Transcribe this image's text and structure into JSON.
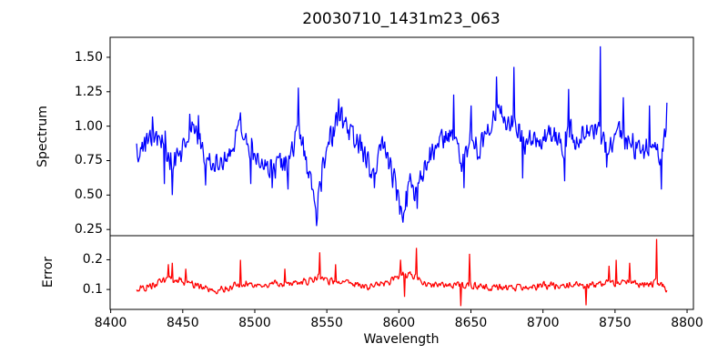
{
  "title": "20030710_1431m23_063",
  "xlabel": "Wavelength",
  "colors": {
    "spectrum": "#0000ff",
    "error": "#ff0000",
    "axes": "#000000",
    "background": "#ffffff"
  },
  "xticks": {
    "labels": [
      "8400",
      "8450",
      "8500",
      "8550",
      "8600",
      "8650",
      "8700",
      "8750",
      "8800"
    ],
    "values": [
      8400,
      8450,
      8500,
      8550,
      8600,
      8650,
      8700,
      8750,
      8800
    ]
  },
  "chart_data": [
    {
      "type": "line",
      "name": "spectrum",
      "ylabel": "Spectrum",
      "color": "#0000ff",
      "legend": "none",
      "grid": false,
      "xlim": [
        8399.6,
        8804.4
      ],
      "ylim": [
        0.205,
        1.645
      ],
      "ytick_labels": [
        "0.25",
        "0.50",
        "0.75",
        "1.00",
        "1.25",
        "1.50"
      ],
      "ytick_values": [
        0.25,
        0.5,
        0.75,
        1.0,
        1.25,
        1.5
      ],
      "x_data_range": [
        8418,
        8786
      ],
      "n_points": 670,
      "envelope": [
        [
          8418,
          0.82
        ],
        [
          8424,
          0.86
        ],
        [
          8428,
          0.92
        ],
        [
          8431,
          0.94
        ],
        [
          8434,
          0.89
        ],
        [
          8437,
          0.92
        ],
        [
          8440,
          0.78
        ],
        [
          8444,
          0.72
        ],
        [
          8448,
          0.76
        ],
        [
          8451,
          0.82
        ],
        [
          8454,
          0.94
        ],
        [
          8457,
          1.0
        ],
        [
          8460,
          0.97
        ],
        [
          8463,
          0.86
        ],
        [
          8466,
          0.74
        ],
        [
          8471,
          0.74
        ],
        [
          8476,
          0.71
        ],
        [
          8480,
          0.77
        ],
        [
          8484,
          0.86
        ],
        [
          8488,
          0.96
        ],
        [
          8491,
          1.0
        ],
        [
          8494,
          0.94
        ],
        [
          8497,
          0.84
        ],
        [
          8500,
          0.8
        ],
        [
          8504,
          0.76
        ],
        [
          8508,
          0.73
        ],
        [
          8512,
          0.71
        ],
        [
          8516,
          0.73
        ],
        [
          8520,
          0.71
        ],
        [
          8524,
          0.76
        ],
        [
          8528,
          0.92
        ],
        [
          8530,
          1.02
        ],
        [
          8533,
          0.86
        ],
        [
          8536,
          0.72
        ],
        [
          8539,
          0.57
        ],
        [
          8542,
          0.34
        ],
        [
          8545,
          0.52
        ],
        [
          8548,
          0.76
        ],
        [
          8551,
          0.9
        ],
        [
          8554,
          0.96
        ],
        [
          8558,
          1.06
        ],
        [
          8561,
          1.04
        ],
        [
          8564,
          0.96
        ],
        [
          8568,
          0.91
        ],
        [
          8572,
          0.89
        ],
        [
          8576,
          0.81
        ],
        [
          8580,
          0.67
        ],
        [
          8583,
          0.71
        ],
        [
          8586,
          0.8
        ],
        [
          8590,
          0.86
        ],
        [
          8593,
          0.76
        ],
        [
          8596,
          0.62
        ],
        [
          8600,
          0.46
        ],
        [
          8603,
          0.37
        ],
        [
          8606,
          0.5
        ],
        [
          8609,
          0.56
        ],
        [
          8613,
          0.48
        ],
        [
          8616,
          0.66
        ],
        [
          8620,
          0.76
        ],
        [
          8624,
          0.84
        ],
        [
          8628,
          0.88
        ],
        [
          8632,
          0.92
        ],
        [
          8636,
          0.95
        ],
        [
          8640,
          0.86
        ],
        [
          8643,
          0.72
        ],
        [
          8646,
          0.76
        ],
        [
          8650,
          0.94
        ],
        [
          8653,
          0.86
        ],
        [
          8656,
          0.82
        ],
        [
          8660,
          0.94
        ],
        [
          8664,
          1.04
        ],
        [
          8668,
          1.14
        ],
        [
          8672,
          1.1
        ],
        [
          8676,
          1.0
        ],
        [
          8680,
          1.04
        ],
        [
          8684,
          0.94
        ],
        [
          8688,
          0.86
        ],
        [
          8692,
          0.9
        ],
        [
          8696,
          0.9
        ],
        [
          8700,
          0.92
        ],
        [
          8705,
          0.94
        ],
        [
          8710,
          0.9
        ],
        [
          8714,
          0.82
        ],
        [
          8718,
          0.98
        ],
        [
          8722,
          0.9
        ],
        [
          8726,
          0.94
        ],
        [
          8730,
          1.0
        ],
        [
          8734,
          0.94
        ],
        [
          8738,
          1.02
        ],
        [
          8742,
          0.9
        ],
        [
          8746,
          0.86
        ],
        [
          8750,
          0.94
        ],
        [
          8754,
          0.98
        ],
        [
          8758,
          0.9
        ],
        [
          8762,
          0.86
        ],
        [
          8766,
          0.86
        ],
        [
          8770,
          0.81
        ],
        [
          8774,
          0.88
        ],
        [
          8778,
          0.86
        ],
        [
          8782,
          0.78
        ],
        [
          8786,
          1.0
        ]
      ],
      "spikes": [
        [
          8429,
          1.07
        ],
        [
          8437,
          0.58
        ],
        [
          8443,
          0.5
        ],
        [
          8455,
          1.09
        ],
        [
          8461,
          1.08
        ],
        [
          8466,
          0.57
        ],
        [
          8490,
          1.1
        ],
        [
          8497,
          0.58
        ],
        [
          8512,
          0.55
        ],
        [
          8523,
          0.54
        ],
        [
          8530,
          1.28
        ],
        [
          8543,
          0.275
        ],
        [
          8558,
          1.2
        ],
        [
          8583,
          0.55
        ],
        [
          8603,
          0.3
        ],
        [
          8613,
          0.4
        ],
        [
          8638,
          1.23
        ],
        [
          8645,
          0.55
        ],
        [
          8650,
          1.15
        ],
        [
          8668,
          1.36
        ],
        [
          8680,
          1.43
        ],
        [
          8686,
          0.62
        ],
        [
          8715,
          0.6
        ],
        [
          8718,
          1.27
        ],
        [
          8740,
          1.58
        ],
        [
          8744,
          0.7
        ],
        [
          8756,
          1.21
        ],
        [
          8774,
          1.15
        ],
        [
          8782,
          0.54
        ],
        [
          8786,
          1.17
        ]
      ],
      "noise": {
        "seed": 1431,
        "amp": "error-envelope",
        "factor": 0.8
      }
    },
    {
      "type": "line",
      "name": "error",
      "ylabel": "Error",
      "color": "#ff0000",
      "legend": "none",
      "grid": false,
      "xlim": [
        8399.6,
        8804.4
      ],
      "ylim": [
        0.033,
        0.281
      ],
      "ytick_labels": [
        "0.1",
        "0.2"
      ],
      "ytick_values": [
        0.1,
        0.2
      ],
      "x_data_range": [
        8418,
        8786
      ],
      "n_points": 670,
      "envelope": [
        [
          8418,
          0.105
        ],
        [
          8425,
          0.11
        ],
        [
          8432,
          0.12
        ],
        [
          8440,
          0.13
        ],
        [
          8445,
          0.135
        ],
        [
          8450,
          0.128
        ],
        [
          8455,
          0.12
        ],
        [
          8460,
          0.115
        ],
        [
          8465,
          0.1
        ],
        [
          8470,
          0.097
        ],
        [
          8476,
          0.1
        ],
        [
          8482,
          0.107
        ],
        [
          8488,
          0.115
        ],
        [
          8492,
          0.122
        ],
        [
          8497,
          0.118
        ],
        [
          8502,
          0.113
        ],
        [
          8508,
          0.12
        ],
        [
          8514,
          0.12
        ],
        [
          8520,
          0.12
        ],
        [
          8526,
          0.126
        ],
        [
          8532,
          0.128
        ],
        [
          8538,
          0.128
        ],
        [
          8544,
          0.145
        ],
        [
          8550,
          0.13
        ],
        [
          8556,
          0.128
        ],
        [
          8562,
          0.124
        ],
        [
          8568,
          0.12
        ],
        [
          8574,
          0.115
        ],
        [
          8580,
          0.11
        ],
        [
          8586,
          0.115
        ],
        [
          8592,
          0.122
        ],
        [
          8598,
          0.14
        ],
        [
          8603,
          0.155
        ],
        [
          8608,
          0.15
        ],
        [
          8613,
          0.135
        ],
        [
          8618,
          0.122
        ],
        [
          8624,
          0.115
        ],
        [
          8630,
          0.11
        ],
        [
          8636,
          0.118
        ],
        [
          8642,
          0.112
        ],
        [
          8648,
          0.118
        ],
        [
          8654,
          0.11
        ],
        [
          8660,
          0.105
        ],
        [
          8666,
          0.106
        ],
        [
          8672,
          0.108
        ],
        [
          8678,
          0.108
        ],
        [
          8684,
          0.104
        ],
        [
          8690,
          0.105
        ],
        [
          8696,
          0.11
        ],
        [
          8702,
          0.113
        ],
        [
          8708,
          0.11
        ],
        [
          8714,
          0.114
        ],
        [
          8720,
          0.118
        ],
        [
          8726,
          0.112
        ],
        [
          8732,
          0.112
        ],
        [
          8738,
          0.118
        ],
        [
          8744,
          0.128
        ],
        [
          8750,
          0.124
        ],
        [
          8756,
          0.128
        ],
        [
          8762,
          0.126
        ],
        [
          8768,
          0.118
        ],
        [
          8774,
          0.118
        ],
        [
          8780,
          0.126
        ],
        [
          8786,
          0.1
        ]
      ],
      "spikes": [
        [
          8440,
          0.185
        ],
        [
          8443,
          0.19
        ],
        [
          8452,
          0.17
        ],
        [
          8490,
          0.2
        ],
        [
          8521,
          0.17
        ],
        [
          8545,
          0.225
        ],
        [
          8556,
          0.185
        ],
        [
          8601,
          0.2
        ],
        [
          8604,
          0.075
        ],
        [
          8612,
          0.24
        ],
        [
          8643,
          0.044
        ],
        [
          8649,
          0.22
        ],
        [
          8730,
          0.047
        ],
        [
          8746,
          0.18
        ],
        [
          8751,
          0.2
        ],
        [
          8760,
          0.19
        ],
        [
          8779,
          0.27
        ]
      ],
      "noise": {
        "seed": 63,
        "amp": 0.013,
        "factor": 1.0
      }
    }
  ]
}
